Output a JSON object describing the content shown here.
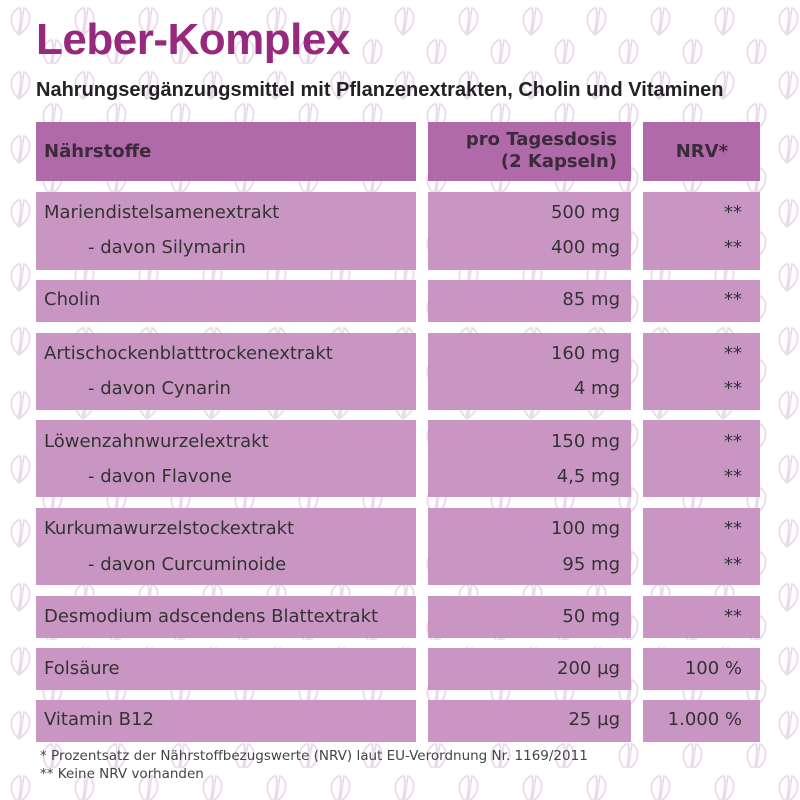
{
  "title": "Leber-Komplex",
  "subtitle": "Nahrungsergänzungsmittel mit Pflanzenextrakten, Cholin und Vitaminen",
  "header": {
    "nutrients": "Nährstoffe",
    "dose_line1": "pro Tagesdosis",
    "dose_line2": "(2 Kapseln)",
    "nrv": "NRV*"
  },
  "rows": [
    {
      "name": "Mariendistelsamenextrakt",
      "dose": "500 mg",
      "nrv": "**"
    },
    {
      "name": "- davon Silymarin",
      "dose": "400 mg",
      "nrv": "**"
    },
    {
      "name": "Cholin",
      "dose": "85 mg",
      "nrv": "**"
    },
    {
      "name": "Artischockenblatttrockenextrakt",
      "dose": "160 mg",
      "nrv": "**"
    },
    {
      "name": "- davon Cynarin",
      "dose": "4 mg",
      "nrv": "**"
    },
    {
      "name": "Löwenzahnwurzelextrakt",
      "dose": "150 mg",
      "nrv": "**"
    },
    {
      "name": "- davon Flavone",
      "dose": "4,5 mg",
      "nrv": "**"
    },
    {
      "name": "Kurkumawurzelstockextrakt",
      "dose": "100 mg",
      "nrv": "**"
    },
    {
      "name": "- davon Curcuminoide",
      "dose": "95 mg",
      "nrv": "**"
    },
    {
      "name": "Desmodium adscendens Blattextrakt",
      "dose": "50 mg",
      "nrv": "**"
    },
    {
      "name": "Folsäure",
      "dose": "200 µg",
      "nrv": "100 %"
    },
    {
      "name": "Vitamin B12",
      "dose": "25 µg",
      "nrv": "1.000 %"
    }
  ],
  "footnotes": {
    "nrv": "* Prozentsatz der Nährstoffbezugswerte (NRV) laut EU-Verordnung Nr. 1169/2011",
    "none": "** Keine NRV vorhanden"
  },
  "colors": {
    "title": "#96297e",
    "header_bg": "#b06aa9",
    "row_bg": "#c996c4",
    "pattern": "#ecdceb"
  },
  "icons": [
    "leaf-heart-icon"
  ]
}
